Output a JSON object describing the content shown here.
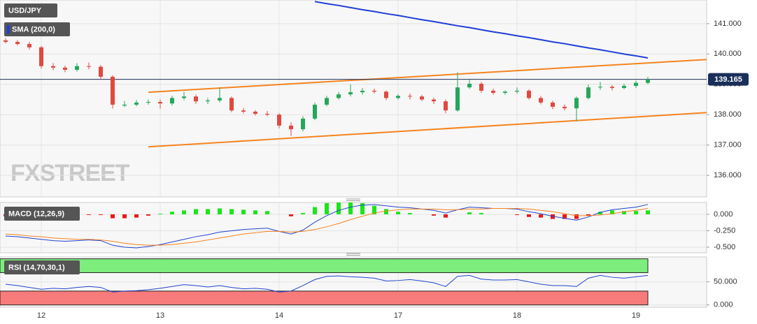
{
  "chart_data": [
    {
      "type": "candlestick",
      "title": "USD/JPY",
      "watermark": "FXSTREET",
      "categories": [
        null,
        null,
        null,
        "12",
        null,
        null,
        null,
        null,
        null,
        null,
        null,
        null,
        null,
        "13",
        null,
        null,
        null,
        null,
        null,
        null,
        null,
        null,
        null,
        "14",
        null,
        null,
        null,
        null,
        null,
        null,
        null,
        null,
        null,
        "17",
        null,
        null,
        null,
        null,
        null,
        null,
        null,
        null,
        null,
        "18",
        null,
        null,
        null,
        null,
        null,
        null,
        null,
        null,
        null,
        "19",
        null
      ],
      "open": [
        140.45,
        140.4,
        140.33,
        140.22,
        139.6,
        139.55,
        139.48,
        139.6,
        139.58,
        139.25,
        138.3,
        138.33,
        138.4,
        138.42,
        138.37,
        138.55,
        138.6,
        138.44,
        138.47,
        138.55,
        138.14,
        138.1,
        138.03,
        138.0,
        137.64,
        137.52,
        137.87,
        138.33,
        138.55,
        138.67,
        138.74,
        138.79,
        138.76,
        138.55,
        138.62,
        138.6,
        138.5,
        138.44,
        138.14,
        138.9,
        139.02,
        138.79,
        138.72,
        138.76,
        138.79,
        138.55,
        138.4,
        138.26,
        138.21,
        138.55,
        138.9,
        138.92,
        138.88,
        138.95,
        139.05
      ],
      "high": [
        140.52,
        140.46,
        140.4,
        140.26,
        139.7,
        139.62,
        139.7,
        139.72,
        139.64,
        139.3,
        138.45,
        138.48,
        138.5,
        138.5,
        138.62,
        138.75,
        138.66,
        138.55,
        138.9,
        138.6,
        138.22,
        138.15,
        138.12,
        138.05,
        137.75,
        137.95,
        138.4,
        138.62,
        138.75,
        139.0,
        138.88,
        138.86,
        138.8,
        138.68,
        138.7,
        138.66,
        138.56,
        138.5,
        139.4,
        139.15,
        139.08,
        138.86,
        138.8,
        138.9,
        138.84,
        138.62,
        138.46,
        138.34,
        138.6,
        139.0,
        139.08,
        138.98,
        139.02,
        139.12,
        139.25
      ],
      "low": [
        140.35,
        140.28,
        140.15,
        139.52,
        139.46,
        139.4,
        139.42,
        139.5,
        139.15,
        138.2,
        138.25,
        138.28,
        138.33,
        138.2,
        138.3,
        138.48,
        138.36,
        138.35,
        138.4,
        138.08,
        138.04,
        137.97,
        137.95,
        137.55,
        137.3,
        137.45,
        137.82,
        138.28,
        138.5,
        138.6,
        138.66,
        138.7,
        138.48,
        138.5,
        138.5,
        138.45,
        138.35,
        138.05,
        138.1,
        138.85,
        138.72,
        138.66,
        138.66,
        138.7,
        138.5,
        138.34,
        138.18,
        138.14,
        137.78,
        138.5,
        138.82,
        138.8,
        138.84,
        138.88,
        139.0
      ],
      "close": [
        140.4,
        140.33,
        140.22,
        139.6,
        139.55,
        139.48,
        139.6,
        139.58,
        139.25,
        138.33,
        138.33,
        138.4,
        138.42,
        138.37,
        138.55,
        138.6,
        138.44,
        138.47,
        138.55,
        138.14,
        138.1,
        138.03,
        138.0,
        137.64,
        137.52,
        137.87,
        138.33,
        138.55,
        138.67,
        138.74,
        138.79,
        138.76,
        138.55,
        138.62,
        138.6,
        138.5,
        138.44,
        138.14,
        138.9,
        139.02,
        138.79,
        138.72,
        138.76,
        138.79,
        138.55,
        138.4,
        138.26,
        138.21,
        138.55,
        138.9,
        138.92,
        138.88,
        138.95,
        139.05,
        139.165
      ],
      "up_color": "#26a65b",
      "down_color": "#e0493f",
      "series": [
        {
          "name": "SMA (200,0)",
          "color": "#1f3fd6",
          "values": [
            null,
            null,
            null,
            null,
            null,
            null,
            null,
            null,
            null,
            null,
            null,
            null,
            null,
            null,
            null,
            null,
            null,
            null,
            null,
            null,
            null,
            null,
            null,
            null,
            null,
            null,
            141.73,
            141.66,
            141.6,
            141.53,
            141.46,
            141.4,
            141.33,
            141.27,
            141.2,
            141.13,
            141.07,
            141.0,
            140.93,
            140.87,
            140.8,
            140.73,
            140.67,
            140.6,
            140.54,
            140.47,
            140.4,
            140.34,
            140.27,
            140.2,
            140.14,
            140.07,
            140.0,
            139.94,
            139.87
          ]
        }
      ],
      "trendlines": [
        {
          "color": "#f5841f",
          "x": [
            12,
            59
          ],
          "y": [
            138.74,
            139.82
          ]
        },
        {
          "color": "#f5841f",
          "x": [
            12,
            59
          ],
          "y": [
            136.94,
            138.07
          ]
        }
      ],
      "last_price": {
        "value": 139.165,
        "label": "139.165"
      },
      "ylim": [
        135.29,
        141.78
      ],
      "yticks": [
        {
          "value": 136,
          "label": "136.000"
        },
        {
          "value": 137,
          "label": "137.000"
        },
        {
          "value": 138,
          "label": "138.000"
        },
        {
          "value": 139,
          "label": "139.000"
        },
        {
          "value": 140,
          "label": "140.000"
        },
        {
          "value": 141,
          "label": "141.000"
        }
      ],
      "grid": true
    },
    {
      "type": "macd",
      "title": "MACD (12,26,9)",
      "histogram": [
        -0.03,
        -0.03,
        -0.03,
        -0.04,
        -0.04,
        -0.04,
        -0.02,
        -0.01,
        -0.01,
        -0.06,
        -0.06,
        -0.05,
        -0.02,
        0.01,
        0.04,
        0.06,
        0.08,
        0.08,
        0.09,
        0.08,
        0.07,
        0.06,
        0.05,
        0.0,
        -0.03,
        0.02,
        0.11,
        0.17,
        0.2,
        0.19,
        0.17,
        0.13,
        0.08,
        0.04,
        0.02,
        0.0,
        -0.02,
        -0.05,
        0.0,
        0.03,
        0.02,
        0.0,
        0.0,
        -0.01,
        -0.04,
        -0.05,
        -0.07,
        -0.07,
        -0.07,
        -0.02,
        0.04,
        0.06,
        0.05,
        0.05,
        0.06
      ],
      "up_color": "#19e619",
      "down_color": "#e61919",
      "series": [
        {
          "color": "#2244cc",
          "values": [
            -0.33,
            -0.34,
            -0.36,
            -0.38,
            -0.4,
            -0.41,
            -0.4,
            -0.39,
            -0.4,
            -0.47,
            -0.5,
            -0.51,
            -0.49,
            -0.46,
            -0.42,
            -0.38,
            -0.34,
            -0.31,
            -0.27,
            -0.25,
            -0.23,
            -0.22,
            -0.21,
            -0.26,
            -0.3,
            -0.24,
            -0.12,
            -0.02,
            0.06,
            0.11,
            0.14,
            0.15,
            0.13,
            0.11,
            0.1,
            0.08,
            0.06,
            0.02,
            0.07,
            0.11,
            0.1,
            0.09,
            0.09,
            0.08,
            0.04,
            0.01,
            -0.03,
            -0.06,
            -0.09,
            -0.04,
            0.03,
            0.07,
            0.09,
            0.11,
            0.15
          ]
        },
        {
          "color": "#f5841f",
          "values": [
            -0.3,
            -0.31,
            -0.33,
            -0.34,
            -0.36,
            -0.37,
            -0.38,
            -0.38,
            -0.39,
            -0.41,
            -0.44,
            -0.46,
            -0.47,
            -0.47,
            -0.46,
            -0.44,
            -0.42,
            -0.39,
            -0.36,
            -0.33,
            -0.3,
            -0.28,
            -0.26,
            -0.26,
            -0.27,
            -0.26,
            -0.23,
            -0.19,
            -0.14,
            -0.08,
            -0.03,
            0.02,
            0.05,
            0.07,
            0.08,
            0.08,
            0.08,
            0.07,
            0.07,
            0.08,
            0.08,
            0.09,
            0.09,
            0.09,
            0.08,
            0.06,
            0.04,
            0.01,
            -0.02,
            -0.02,
            -0.01,
            0.01,
            0.04,
            0.06,
            0.09
          ]
        }
      ],
      "ylim": [
        -0.585,
        0.18
      ],
      "yticks": [
        {
          "value": -0.5,
          "label": "-0.500"
        },
        {
          "value": -0.25,
          "label": "-0.250"
        },
        {
          "value": 0,
          "label": "0.000"
        }
      ],
      "grid": true
    },
    {
      "type": "rsi",
      "title": "RSI (14,70,30,1)",
      "bands": [
        {
          "range": [
            70,
            100
          ],
          "color": "#7ded7d"
        },
        {
          "range": [
            0,
            30
          ],
          "color": "#f77b7b"
        }
      ],
      "series": [
        {
          "color": "#2244cc",
          "values": [
            45,
            42,
            38,
            34,
            36,
            35,
            38,
            40,
            38,
            28,
            30,
            31,
            33,
            36,
            40,
            44,
            42,
            39,
            42,
            38,
            35,
            36,
            34,
            28,
            30,
            42,
            55,
            62,
            63,
            61,
            60,
            58,
            52,
            53,
            55,
            52,
            48,
            40,
            62,
            64,
            56,
            54,
            54,
            55,
            50,
            45,
            42,
            42,
            40,
            58,
            64,
            60,
            58,
            61,
            64
          ]
        }
      ],
      "ylim": [
        -5,
        104
      ],
      "yticks": [
        {
          "value": 0,
          "label": "0.000"
        },
        {
          "value": 50,
          "label": "50.000"
        }
      ],
      "grid": true
    }
  ]
}
